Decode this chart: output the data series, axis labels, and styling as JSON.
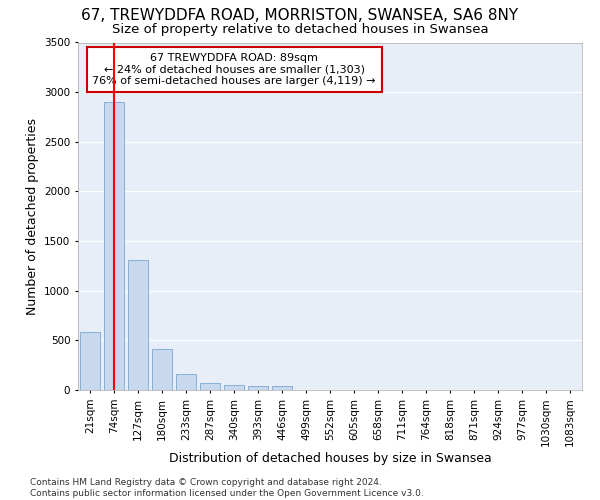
{
  "title_line1": "67, TREWYDDFA ROAD, MORRISTON, SWANSEA, SA6 8NY",
  "title_line2": "Size of property relative to detached houses in Swansea",
  "xlabel": "Distribution of detached houses by size in Swansea",
  "ylabel": "Number of detached properties",
  "bin_labels": [
    "21sqm",
    "74sqm",
    "127sqm",
    "180sqm",
    "233sqm",
    "287sqm",
    "340sqm",
    "393sqm",
    "446sqm",
    "499sqm",
    "552sqm",
    "605sqm",
    "658sqm",
    "711sqm",
    "764sqm",
    "818sqm",
    "871sqm",
    "924sqm",
    "977sqm",
    "1030sqm",
    "1083sqm"
  ],
  "bar_values": [
    580,
    2900,
    1305,
    415,
    165,
    75,
    55,
    45,
    38,
    0,
    0,
    0,
    0,
    0,
    0,
    0,
    0,
    0,
    0,
    0,
    0
  ],
  "bar_color": "#c8d8ee",
  "bar_edge_color": "#7aa8d0",
  "property_line_bin_index": 1.0,
  "annotation_text": "67 TREWYDDFA ROAD: 89sqm\n← 24% of detached houses are smaller (1,303)\n76% of semi-detached houses are larger (4,119) →",
  "annotation_box_color": "white",
  "annotation_box_edge_color": "#cc0000",
  "ylim": [
    0,
    3500
  ],
  "yticks": [
    0,
    500,
    1000,
    1500,
    2000,
    2500,
    3000,
    3500
  ],
  "footnote": "Contains HM Land Registry data © Crown copyright and database right 2024.\nContains public sector information licensed under the Open Government Licence v3.0.",
  "bg_color": "#e8eef8",
  "grid_color": "white",
  "title1_fontsize": 11,
  "title2_fontsize": 9.5,
  "axis_label_fontsize": 9,
  "tick_fontsize": 7.5,
  "annotation_fontsize": 8,
  "footnote_fontsize": 6.5
}
